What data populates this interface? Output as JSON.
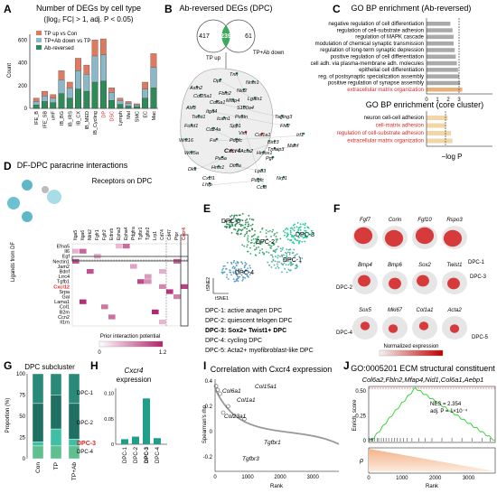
{
  "panels": {
    "A": "A",
    "B": "B",
    "C": "C",
    "D": "D",
    "E": "E",
    "F": "F",
    "G": "G",
    "H": "H",
    "I": "I",
    "J": "J"
  },
  "A": {
    "title": "Number of DEGs by cell type",
    "subtitle": "(|log₂ FC| > 1, adj. P < 0.05)",
    "ylabel": "Count",
    "legend": [
      "TP up vs Con",
      "TP+Ab down vs TP",
      "Ab-reversed"
    ],
    "colors": {
      "tp_up": "#e07a5f",
      "tpab_down": "#8bb8c8",
      "ab_rev": "#2e8b57"
    },
    "yticks": [
      "0",
      "200",
      "400",
      "600"
    ],
    "categories": [
      "IFE_B",
      "IFE_SB",
      "uHF",
      "IB_BG",
      "IB_IRS",
      "IB_CX",
      "IB_MED",
      "IB_Cycling",
      "DP",
      "DSC",
      "Lymph",
      "Mel",
      "SMC",
      "EC",
      "Mac"
    ]
  },
  "chart_data": {
    "type": "bar",
    "title": "Number of DEGs by cell type",
    "ylabel": "Count",
    "ylim": [
      0,
      650
    ],
    "categories": [
      "IFE_B",
      "IFE_SB",
      "uHF",
      "IB_BG",
      "IB_IRS",
      "IB_CX",
      "IB_MED",
      "IB_Cycling",
      "DP",
      "DSC",
      "Lymph",
      "Mel",
      "SMC",
      "EC",
      "Mac"
    ],
    "series": [
      {
        "name": "TP up vs Con",
        "values": [
          90,
          150,
          120,
          330,
          230,
          440,
          380,
          600,
          610,
          180,
          90,
          60,
          40,
          230,
          480
        ]
      },
      {
        "name": "TP+Ab down vs TP",
        "values": [
          60,
          110,
          90,
          250,
          180,
          330,
          300,
          460,
          470,
          140,
          70,
          45,
          30,
          170,
          360
        ]
      },
      {
        "name": "Ab-reversed",
        "values": [
          30,
          60,
          50,
          130,
          90,
          170,
          150,
          230,
          240,
          70,
          35,
          20,
          15,
          90,
          180
        ]
      }
    ]
  },
  "B": {
    "title": "Ab-reversed DEGs (DPC)",
    "left": "417",
    "mid": "239",
    "right": "61",
    "lab1": "TP up",
    "lab2": "TP+Ab down",
    "genes": [
      "Tnn",
      "Nrxn1",
      "Astn2",
      "Dpt",
      "Nid2",
      "Col25a1",
      "Fbln2",
      "Lgals1",
      "Mfap4",
      "Col6a1",
      "S100a4",
      "Alx3",
      "Itga4",
      "Taglng3",
      "Twist1",
      "Postn",
      "Fhl2",
      "Foxd1",
      "Cd24a",
      "Spp1",
      "Wnt16",
      "Fst",
      "Pdgfc",
      "Cxcr4",
      "Birc3",
      "Irf1",
      "Wnt5a",
      "Pa5a",
      "Acta2",
      "Hmox1",
      "Tnfaip3",
      "Dkk",
      "Hmx1",
      "Dtnla",
      "Manf",
      "Cxcl1",
      "Lhfp",
      "Lpb3",
      "Nrp1",
      "Ccl8",
      "Pdgfc",
      "Pgf",
      "Icam1",
      "Vim",
      "Col1a1",
      "Ace"
    ]
  },
  "C": {
    "title1": "GO BP enrichment (Ab-reversed)",
    "title2": "GO BP enrichment (core cluster)",
    "terms1": [
      "negative regulation of cell differentiation",
      "regulation of cell-substrate adhesion",
      "regulation of MAPK cascade",
      "modulation of chemical synaptic transmission",
      "regulation of long-term synaptic depression",
      "positive regulation of cell differentiation",
      "cell adh. via plasma-membrane adh. molecules",
      "epithelial cell differentiation",
      "reg. of postsynaptic specialization assembly",
      "positive regulation of synapse assembly",
      "extracellular matrix organization"
    ],
    "vals1": [
      2.2,
      2.4,
      2.5,
      2.5,
      2.6,
      2.7,
      2.8,
      2.9,
      3.0,
      3.1,
      3.3
    ],
    "terms2": [
      "neuron cell-cell adhesion",
      "cell-matrix adhesion",
      "regulation of cell-substrate adhesion",
      "extracellular matrix organization"
    ],
    "vals2": [
      1.3,
      1.2,
      1.5,
      1.6
    ],
    "xticks": [
      "0",
      "1",
      "2",
      "3"
    ],
    "xlabel": "−log P"
  },
  "D": {
    "title": "DF-DPC paracrine interactions",
    "sub": "Receptors on DPC",
    "ylabel": "Ligands from DF",
    "receptors": [
      "Itga5",
      "Itga6",
      "Ntrk2",
      "Fgfr1",
      "Fgfr2",
      "Ednrb",
      "Epha3",
      "Epha4",
      "Pdgfra",
      "Tgfbr1",
      "Tgfbr2",
      "Lrp1",
      "Cd74",
      "Cd47",
      "Ptpr",
      "Cxcr4"
    ],
    "ligands": [
      "Efna5",
      "Il6",
      "Egf",
      "Nectin1",
      "Jam2",
      "Bdnf",
      "Lrrc4",
      "Tgfb1",
      "Cxcl12",
      "Srpa",
      "Gal",
      "Lama1",
      "Col1",
      "B2m",
      "Ccn2",
      "Il1rn"
    ],
    "legend": "Prior interaction potential",
    "lo": "0",
    "hi": "1.2"
  },
  "E": {
    "axx": "tSNE1",
    "axy": "tSNE2",
    "clusters": [
      "DPC-5",
      "DPC-2",
      "DPC-3",
      "DPC-1",
      "DPC-4"
    ],
    "desc": [
      "DPC-1: active anagen DPC",
      "DPC-2: quiescent telogen DPC",
      "DPC-3: Sox2+ Twist1+ DPC",
      "DPC-4: cycling DPC",
      "DPC-5: Acta2+ myofibroblast-like DPC"
    ]
  },
  "F": {
    "genes": [
      "Fgf7",
      "Corin",
      "Fgf10",
      "Rspo3",
      "Bmp4",
      "Bmp6",
      "Sox2",
      "Twist1",
      "Sox5",
      "Mki67",
      "Col1a1",
      "Acta2"
    ],
    "labels": [
      "DPC-1",
      "DPC-2",
      "DPC-3",
      "DPC-4",
      "DPC-5"
    ],
    "legend": "Normalized expression"
  },
  "G": {
    "title": "DPC subcluster",
    "ylabel": "Proportion (%)",
    "x": [
      "Con",
      "TP",
      "TP+Ab"
    ],
    "yticks": [
      "0",
      "25",
      "50",
      "75",
      "100"
    ],
    "labels": [
      "DPC-1",
      "DPC-2",
      "DPC-3",
      "DPC-4"
    ]
  },
  "H": {
    "title": "Cxcr4",
    "title2": "expression",
    "x": [
      "DPC-1",
      "DPC-2",
      "DPC-3",
      "DPC-4"
    ],
    "vals": [
      0.01,
      0.015,
      0.09,
      0.012
    ],
    "yticks": [
      "0",
      "0.05",
      "0.10"
    ]
  },
  "I": {
    "title": "Correlation with Cxcr4 expression",
    "ylabel": "Spearman's rho",
    "xlabel": "Rank",
    "xticks": [
      "0",
      "1000",
      "2000",
      "3000"
    ],
    "yticks": [
      "-0.2",
      "0",
      "0.2",
      "0.4"
    ],
    "genes": [
      "Col6a1",
      "Col15a1",
      "Col1a1",
      "Col23a1",
      "Tgfbr1",
      "Tgfbr3"
    ]
  },
  "J": {
    "title": "GO:0005201 ECM structural constituent",
    "sub": "Col6a2,Fbln2,Mfap4,Nid1,Col6a1,Aebp1",
    "nes": "NES = 2.354",
    "padj": "adj. P = 1×10⁻⁴",
    "ylabel": "Enrich. score",
    "ylabel2": "ρ",
    "xlabel": "Rank",
    "xticks": [
      "0",
      "1000",
      "2000",
      "3000"
    ],
    "yticks": [
      "0",
      "0.25",
      "0.50"
    ]
  }
}
